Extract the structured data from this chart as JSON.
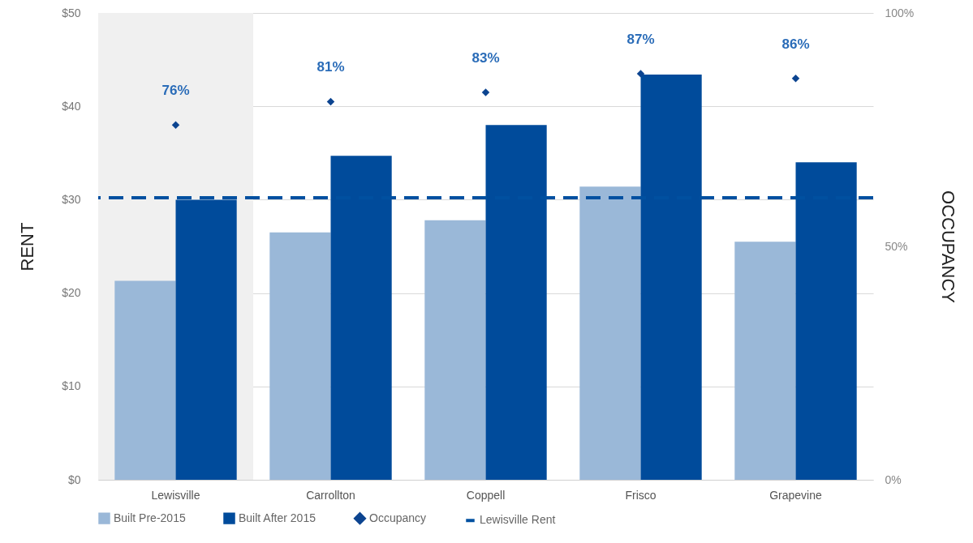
{
  "chart_data": {
    "type": "bar",
    "ylabel": "RENT",
    "y2label": "OCCUPANCY",
    "categories": [
      "Lewisville",
      "Carrollton",
      "Coppell",
      "Frisco",
      "Grapevine"
    ],
    "series": [
      {
        "name": "Built Pre-2015",
        "color": "#9ab8d8",
        "values": [
          21.3,
          26.5,
          27.8,
          31.4,
          25.5
        ]
      },
      {
        "name": "Built After 2015",
        "color": "#004b9b",
        "values": [
          30,
          34.7,
          38,
          43.4,
          34
        ]
      },
      {
        "name": "Occupancy",
        "type": "scatter",
        "axis": "y2",
        "color": "#0c4490",
        "marker": "diamond",
        "values": [
          76,
          81,
          83,
          87,
          86
        ],
        "value_labels": [
          "76%",
          "81%",
          "83%",
          "87%",
          "86%"
        ]
      }
    ],
    "ylim": [
      0,
      50
    ],
    "yticks": [
      {
        "value": 0,
        "label": "$0"
      },
      {
        "value": 10,
        "label": "$10"
      },
      {
        "value": 20,
        "label": "$20"
      },
      {
        "value": 30,
        "label": "$30"
      },
      {
        "value": 40,
        "label": "$40"
      },
      {
        "value": 50,
        "label": "$50"
      }
    ],
    "y2lim": [
      0,
      100
    ],
    "y2ticks": [
      {
        "value": 0,
        "label": "0%"
      },
      {
        "value": 50,
        "label": "50%"
      },
      {
        "value": 100,
        "label": "100%"
      }
    ],
    "ref_lines": [
      {
        "axis": "y",
        "value": 30.2,
        "label": "Lewisville Rent",
        "color": "#0050a0",
        "line_style": "dashed"
      }
    ],
    "bands": [
      {
        "axis": "x",
        "from": "Lewisville",
        "to": "Lewisville",
        "color": "#f0f0f0"
      }
    ],
    "grid": "y",
    "legend": "bottom"
  }
}
